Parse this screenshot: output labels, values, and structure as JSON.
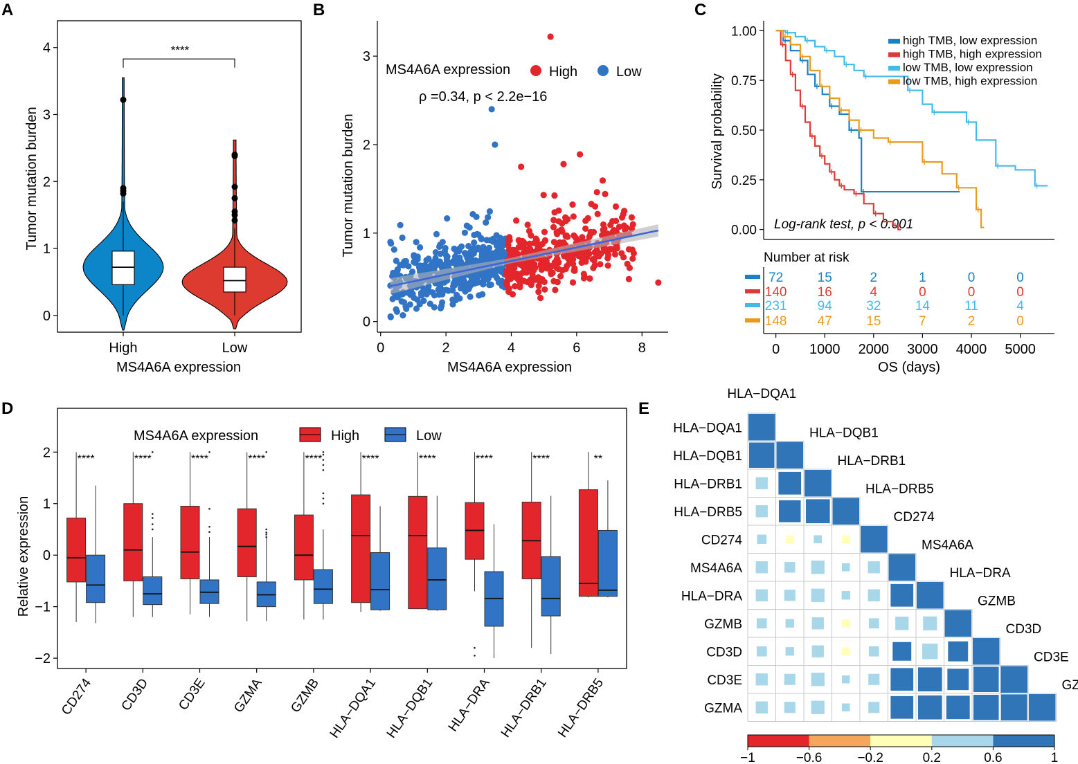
{
  "colors": {
    "high": "#e3262b",
    "low": "#3174c6",
    "violin_high": "#dd3b30",
    "violin_low": "#0d86c9",
    "km_blue": "#1a82c3",
    "km_red": "#e03a36",
    "km_cyan": "#43bbe8",
    "km_orange": "#ec9a1c",
    "corr_strong": "#2f75b8",
    "corr_weak": "#a8d7ea",
    "corr_near0": "#ffffb8"
  },
  "panels": {
    "a": "A",
    "b": "B",
    "c": "C",
    "d": "D",
    "e": "E"
  },
  "chart_data": [
    {
      "id": "A",
      "type": "violin",
      "title": "",
      "xlabel": "MS4A6A expression",
      "ylabel": "Tumor mutation  burden",
      "categories": [
        "High",
        "Low"
      ],
      "yticks": [
        "0",
        "1",
        "2",
        "3",
        "4"
      ],
      "ylim": [
        -0.25,
        4.4
      ],
      "boxes": [
        {
          "q1": 0.46,
          "median": 0.72,
          "q3": 0.96,
          "min": 0.0,
          "max": 1.7,
          "outliers": [
            1.82,
            1.86,
            1.9,
            3.22
          ]
        },
        {
          "q1": 0.35,
          "median": 0.52,
          "q3": 0.72,
          "min": 0.0,
          "max": 1.3,
          "outliers": [
            1.42,
            1.5,
            1.55,
            1.75,
            1.92,
            2.38,
            2.4
          ]
        }
      ],
      "significance": "****"
    },
    {
      "id": "B",
      "type": "scatter",
      "xlabel": "MS4A6A expression",
      "ylabel": "Tumor mutation  burden",
      "xticks": [
        "0",
        "2",
        "4",
        "6",
        "8"
      ],
      "yticks": [
        "0",
        "1",
        "2",
        "3"
      ],
      "xlim": [
        -0.1,
        8.8
      ],
      "ylim": [
        -0.12,
        3.4
      ],
      "legend_title": "MS4A6A expression",
      "legend": [
        "High",
        "Low"
      ],
      "annotation": "ρ =0.34, p < 2.2e−16",
      "fit": {
        "x0": 0.3,
        "y0": 0.4,
        "x1": 8.5,
        "y1": 1.03
      },
      "points": [
        [
          5.2,
          3.22
        ],
        [
          3.4,
          2.4
        ],
        [
          3.5,
          2.0
        ],
        [
          6.1,
          1.89
        ],
        [
          4.3,
          1.75
        ],
        [
          5.6,
          1.78
        ],
        [
          7.6,
          0.48
        ],
        [
          8.5,
          0.44
        ],
        [
          7.2,
          1.3
        ]
      ]
    },
    {
      "id": "C",
      "type": "line",
      "ylabel": "Survival probability",
      "xlabel": "OS (days)",
      "xticks": [
        "0",
        "1000",
        "2000",
        "3000",
        "4000",
        "5000"
      ],
      "yticks": [
        "0.00",
        "0.25",
        "0.50",
        "0.75",
        "1.00"
      ],
      "xlim": [
        -250,
        5700
      ],
      "ylim": [
        -0.05,
        1.05
      ],
      "annotation": "Log-rank test, p < 0.001",
      "series": [
        {
          "name": "high TMB, low expression",
          "color": "#1a82c3",
          "steps": [
            [
              0,
              1.0
            ],
            [
              150,
              0.95
            ],
            [
              300,
              0.9
            ],
            [
              500,
              0.85
            ],
            [
              650,
              0.78
            ],
            [
              800,
              0.72
            ],
            [
              950,
              0.68
            ],
            [
              1100,
              0.62
            ],
            [
              1300,
              0.58
            ],
            [
              1500,
              0.5
            ],
            [
              1700,
              0.46
            ],
            [
              1750,
              0.19
            ],
            [
              3700,
              0.19
            ]
          ]
        },
        {
          "name": "high TMB, high expression",
          "color": "#e03a36",
          "steps": [
            [
              0,
              1.0
            ],
            [
              100,
              0.93
            ],
            [
              200,
              0.85
            ],
            [
              300,
              0.78
            ],
            [
              400,
              0.7
            ],
            [
              500,
              0.62
            ],
            [
              600,
              0.54
            ],
            [
              700,
              0.47
            ],
            [
              800,
              0.42
            ],
            [
              900,
              0.37
            ],
            [
              1000,
              0.33
            ],
            [
              1100,
              0.29
            ],
            [
              1200,
              0.25
            ],
            [
              1300,
              0.22
            ],
            [
              1400,
              0.2
            ],
            [
              1600,
              0.18
            ],
            [
              1800,
              0.13
            ],
            [
              2000,
              0.08
            ],
            [
              2200,
              0.04
            ],
            [
              2400,
              0.02
            ],
            [
              2500,
              0.0
            ]
          ]
        },
        {
          "name": "low TMB,  low expression",
          "color": "#43bbe8",
          "steps": [
            [
              0,
              1.0
            ],
            [
              200,
              0.99
            ],
            [
              400,
              0.97
            ],
            [
              600,
              0.95
            ],
            [
              800,
              0.92
            ],
            [
              1000,
              0.9
            ],
            [
              1200,
              0.87
            ],
            [
              1400,
              0.83
            ],
            [
              1600,
              0.8
            ],
            [
              1800,
              0.77
            ],
            [
              2500,
              0.77
            ],
            [
              2700,
              0.7
            ],
            [
              3000,
              0.63
            ],
            [
              3200,
              0.59
            ],
            [
              3600,
              0.59
            ],
            [
              3900,
              0.54
            ],
            [
              4100,
              0.45
            ],
            [
              4500,
              0.32
            ],
            [
              4900,
              0.3
            ],
            [
              5300,
              0.22
            ],
            [
              5500,
              0.22
            ]
          ]
        },
        {
          "name": "low TMB, high expression",
          "color": "#ec9a1c",
          "steps": [
            [
              0,
              1.0
            ],
            [
              150,
              0.97
            ],
            [
              300,
              0.93
            ],
            [
              500,
              0.87
            ],
            [
              700,
              0.8
            ],
            [
              900,
              0.72
            ],
            [
              1100,
              0.66
            ],
            [
              1300,
              0.6
            ],
            [
              1500,
              0.55
            ],
            [
              1700,
              0.5
            ],
            [
              2000,
              0.46
            ],
            [
              2300,
              0.44
            ],
            [
              2900,
              0.44
            ],
            [
              3000,
              0.34
            ],
            [
              3400,
              0.28
            ],
            [
              3700,
              0.21
            ],
            [
              3900,
              0.21
            ],
            [
              4100,
              0.1
            ],
            [
              4200,
              0.01
            ]
          ]
        }
      ],
      "risk_title": "Number at risk",
      "risk_table": [
        [
          "72",
          "15",
          "2",
          "1",
          "0",
          "0"
        ],
        [
          "140",
          "16",
          "4",
          "0",
          "0",
          "0"
        ],
        [
          "231",
          "94",
          "32",
          "14",
          "11",
          "4"
        ],
        [
          "148",
          "47",
          "15",
          "7",
          "2",
          "0"
        ]
      ]
    },
    {
      "id": "D",
      "type": "boxplot",
      "ylabel": "Relative expression",
      "legend_title": "MS4A6A expression",
      "legend": [
        "High",
        "Low"
      ],
      "yticks": [
        "−2",
        "−1",
        "0",
        "1",
        "2"
      ],
      "ylim": [
        -2.2,
        2.85
      ],
      "categories": [
        "CD274",
        "CD3D",
        "CD3E",
        "GZMA",
        "GZMB",
        "HLA−DQA1",
        "HLA−DQB1",
        "HLA−DRA",
        "HLA−DRB1",
        "HLA−DRB5"
      ],
      "significance": [
        "****",
        "****",
        "****",
        "****",
        "****",
        "****",
        "****",
        "****",
        "****",
        "**"
      ],
      "high": [
        {
          "min": -1.3,
          "q1": -0.52,
          "median": -0.05,
          "q3": 0.72,
          "max": 2.0
        },
        {
          "min": -1.2,
          "q1": -0.5,
          "median": 0.1,
          "q3": 1.0,
          "max": 2.0
        },
        {
          "min": -1.15,
          "q1": -0.46,
          "median": 0.06,
          "q3": 0.95,
          "max": 2.0
        },
        {
          "min": -1.28,
          "q1": -0.42,
          "median": 0.17,
          "q3": 0.9,
          "max": 2.0
        },
        {
          "min": -1.25,
          "q1": -0.48,
          "median": 0.0,
          "q3": 0.78,
          "max": 2.0
        },
        {
          "min": -1.1,
          "q1": -0.92,
          "median": 0.38,
          "q3": 1.17,
          "max": 2.0
        },
        {
          "min": -1.05,
          "q1": -1.04,
          "median": 0.38,
          "q3": 1.14,
          "max": 2.0
        },
        {
          "min": -0.7,
          "q1": -0.08,
          "median": 0.48,
          "q3": 1.02,
          "max": 2.0
        },
        {
          "min": -1.8,
          "q1": -0.46,
          "median": 0.28,
          "q3": 1.03,
          "max": 2.0
        },
        {
          "min": -0.82,
          "q1": -0.8,
          "median": -0.55,
          "q3": 1.27,
          "max": 2.0
        }
      ],
      "low": [
        {
          "min": -1.32,
          "q1": -0.92,
          "median": -0.58,
          "q3": 0.0,
          "max": 1.35
        },
        {
          "min": -1.2,
          "q1": -0.96,
          "median": -0.75,
          "q3": -0.42,
          "max": 0.35
        },
        {
          "min": -1.2,
          "q1": -0.94,
          "median": -0.72,
          "q3": -0.48,
          "max": 0.35
        },
        {
          "min": -1.28,
          "q1": -1.0,
          "median": -0.77,
          "q3": -0.52,
          "max": 0.35
        },
        {
          "min": -1.25,
          "q1": -0.94,
          "median": -0.66,
          "q3": -0.28,
          "max": 0.5
        },
        {
          "min": -1.08,
          "q1": -1.06,
          "median": -0.67,
          "q3": 0.05,
          "max": 0.95
        },
        {
          "min": -1.08,
          "q1": -1.06,
          "median": -0.48,
          "q3": 0.14,
          "max": 1.15
        },
        {
          "min": -2.0,
          "q1": -1.38,
          "median": -0.84,
          "q3": -0.32,
          "max": 0.6
        },
        {
          "min": -1.92,
          "q1": -1.18,
          "median": -0.84,
          "q3": -0.03,
          "max": 1.15
        },
        {
          "min": -0.82,
          "q1": -0.8,
          "median": -0.68,
          "q3": 0.48,
          "max": 1.45
        }
      ],
      "outliers_high": [
        [],
        [],
        [],
        [],
        [],
        [],
        [],
        [
          -1.8,
          -1.95
        ],
        [],
        []
      ],
      "outliers_low": [
        [],
        [
          2.0,
          0.8,
          0.72,
          0.6,
          0.5
        ],
        [
          2.0,
          0.9,
          0.55,
          0.45
        ],
        [
          2.0,
          0.5,
          0.44,
          0.4,
          0.35
        ],
        [
          2.0,
          1.95,
          1.85,
          1.75,
          1.65,
          1.2,
          1.1,
          1.0
        ],
        [],
        [],
        [],
        [],
        []
      ]
    },
    {
      "id": "E",
      "type": "heatmap",
      "labels": [
        "HLA−DQA1",
        "HLA−DQB1",
        "HLA−DRB1",
        "HLA−DRB5",
        "CD274",
        "MS4A6A",
        "HLA−DRA",
        "GZMB",
        "CD3D",
        "CD3E",
        "GZMA"
      ],
      "colorbar_ticks": [
        "−1",
        "−0.6",
        "−0.2",
        "0.2",
        "0.6",
        "1"
      ],
      "colorbar_colors": [
        "#e3262b",
        "#f6a65a",
        "#ffffb8",
        "#a8d7ea",
        "#2f75b8"
      ],
      "matrix": [
        [
          1.0
        ],
        [
          0.95,
          1.0
        ],
        [
          0.45,
          0.85,
          1.0
        ],
        [
          0.45,
          0.82,
          0.9,
          1.0
        ],
        [
          0.35,
          0.12,
          0.3,
          0.08,
          1.0
        ],
        [
          0.45,
          0.4,
          0.5,
          0.3,
          0.45,
          1.0
        ],
        [
          0.45,
          0.42,
          0.5,
          0.32,
          0.45,
          0.85,
          1.0
        ],
        [
          0.38,
          0.32,
          0.45,
          0.15,
          0.38,
          0.5,
          0.52,
          1.0
        ],
        [
          0.38,
          0.32,
          0.45,
          0.15,
          0.38,
          0.7,
          0.58,
          0.75,
          1.0
        ],
        [
          0.45,
          0.42,
          0.5,
          0.25,
          0.42,
          0.85,
          0.9,
          0.8,
          0.95,
          1.0
        ],
        [
          0.45,
          0.42,
          0.5,
          0.25,
          0.42,
          0.85,
          0.9,
          0.88,
          0.95,
          0.98,
          1.0
        ]
      ]
    }
  ]
}
